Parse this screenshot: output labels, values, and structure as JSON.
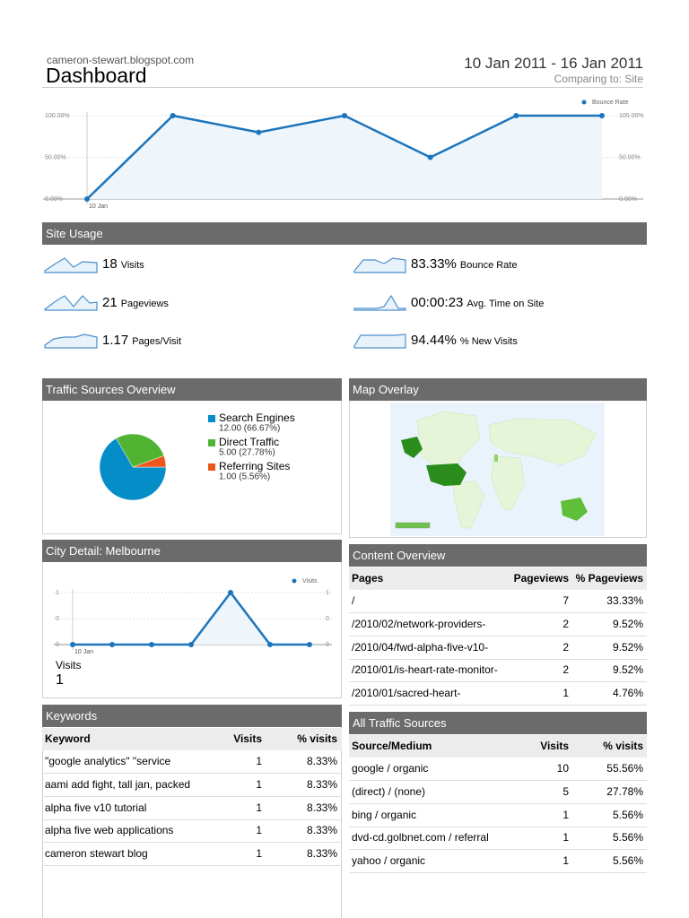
{
  "header": {
    "site": "cameron-stewart.blogspot.com",
    "title": "Dashboard",
    "date_range": "10 Jan 2011 - 16 Jan 2011",
    "comparing": "Comparing to: Site"
  },
  "chart_data": [
    {
      "type": "line",
      "categories": [
        "10 Jan",
        null,
        null,
        null,
        null,
        null,
        null
      ],
      "series": [
        {
          "name": "Bounce Rate",
          "color": "#1b75bc",
          "values": [
            0,
            100,
            80,
            100,
            50,
            100,
            100
          ]
        }
      ],
      "ylim": [
        0,
        100
      ],
      "yticks": [
        {
          "value": 0,
          "label": "0.00%"
        },
        {
          "value": 50,
          "label": "50.00%"
        },
        {
          "value": 100,
          "label": "100.00%"
        }
      ],
      "grid": true,
      "legend": "top-right"
    },
    {
      "type": "pie",
      "title": "Traffic Sources Overview",
      "categories": [
        "Search Engines",
        "Direct Traffic",
        "Referring Sites"
      ],
      "values": [
        12,
        5,
        1
      ],
      "value_labels": [
        "12.00 (66.67%)",
        "5.00 (27.78%)",
        "1.00 (5.56%)"
      ],
      "colors": [
        "#058dc7",
        "#50b432",
        "#ed561b"
      ],
      "legend": "right"
    },
    {
      "type": "line",
      "title": "City Detail: Melbourne",
      "categories": [
        "10 Jan",
        null,
        null,
        null,
        null,
        null,
        null
      ],
      "series": [
        {
          "name": "Visits",
          "color": "#1b75bc",
          "values": [
            0,
            0,
            0,
            0,
            1,
            0,
            0
          ]
        }
      ],
      "ylim": [
        0,
        1
      ],
      "yticks": [
        0,
        {
          "value": 0.5,
          "label": "0"
        },
        1
      ],
      "grid": true,
      "legend": "top-right",
      "summary_label": "Visits",
      "summary_value": "1"
    }
  ],
  "site_usage": {
    "title": "Site Usage",
    "metrics": [
      {
        "value": "18",
        "label": "Visits"
      },
      {
        "value": "21",
        "label": "Pageviews"
      },
      {
        "value": "1.17",
        "label": "Pages/Visit"
      },
      {
        "value": "83.33%",
        "label": "Bounce Rate"
      },
      {
        "value": "00:00:23",
        "label": "Avg. Time on Site"
      },
      {
        "value": "94.44%",
        "label": "% New Visits"
      }
    ]
  },
  "map_overlay": {
    "title": "Map Overlay"
  },
  "content_overview": {
    "title": "Content Overview",
    "columns": [
      "Pages",
      "Pageviews",
      "% Pageviews"
    ],
    "rows": [
      [
        "/",
        "7",
        "33.33%"
      ],
      [
        "/2010/02/network-providers-",
        "2",
        "9.52%"
      ],
      [
        "/2010/04/fwd-alpha-five-v10-",
        "2",
        "9.52%"
      ],
      [
        "/2010/01/is-heart-rate-monitor-",
        "2",
        "9.52%"
      ],
      [
        "/2010/01/sacred-heart-",
        "1",
        "4.76%"
      ]
    ]
  },
  "keywords": {
    "title": "Keywords",
    "columns": [
      "Keyword",
      "Visits",
      "% visits"
    ],
    "rows": [
      [
        "\"google analytics\" \"service",
        "1",
        "8.33%"
      ],
      [
        "aami add fight, tall jan, packed",
        "1",
        "8.33%"
      ],
      [
        "alpha five v10 tutorial",
        "1",
        "8.33%"
      ],
      [
        "alpha five web applications",
        "1",
        "8.33%"
      ],
      [
        "cameron stewart blog",
        "1",
        "8.33%"
      ]
    ]
  },
  "all_traffic_sources": {
    "title": "All Traffic Sources",
    "columns": [
      "Source/Medium",
      "Visits",
      "% visits"
    ],
    "rows": [
      [
        "google / organic",
        "10",
        "55.56%"
      ],
      [
        "(direct) / (none)",
        "5",
        "27.78%"
      ],
      [
        "bing / organic",
        "1",
        "5.56%"
      ],
      [
        "dvd-cd.golbnet.com / referral",
        "1",
        "5.56%"
      ],
      [
        "yahoo / organic",
        "1",
        "5.56%"
      ]
    ]
  }
}
